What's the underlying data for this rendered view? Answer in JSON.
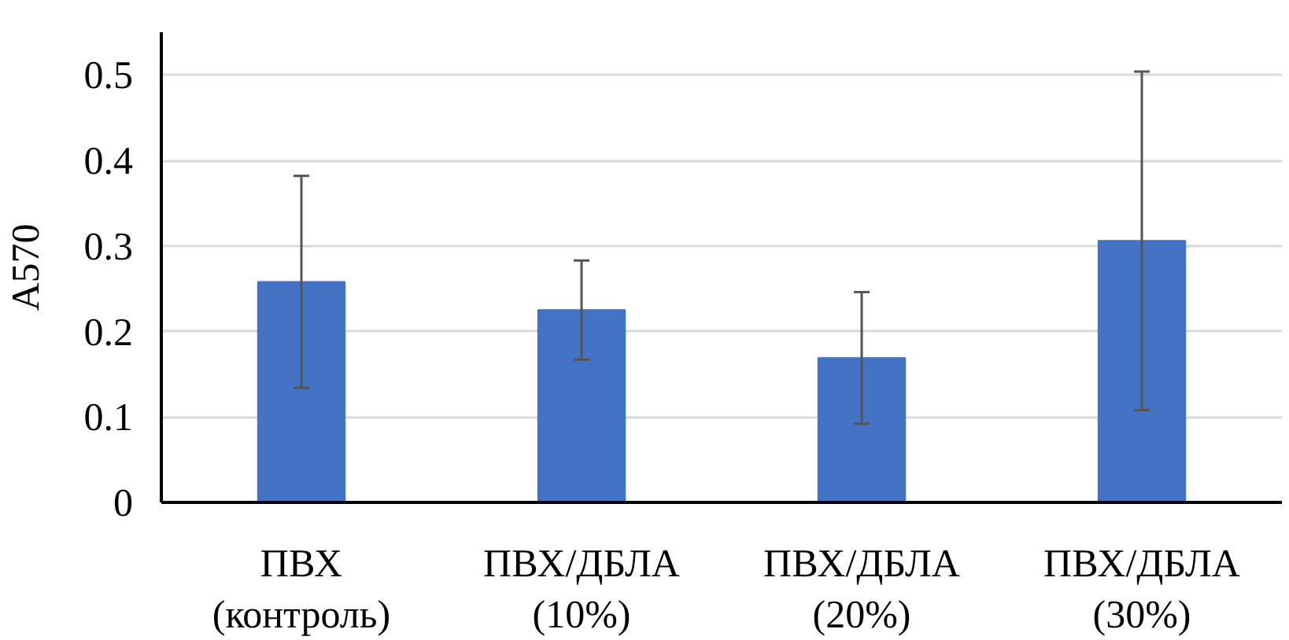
{
  "chart_data": {
    "type": "bar",
    "ylabel": "A570",
    "categories": [
      "ПВХ\n(контроль)",
      "ПВХ/ДБЛА\n(10%)",
      "ПВХ/ДБЛА\n(20%)",
      "ПВХ/ДБЛА\n(30%)"
    ],
    "values": [
      0.258,
      0.225,
      0.169,
      0.306
    ],
    "errors": [
      0.124,
      0.058,
      0.077,
      0.198
    ],
    "color": "#4472c4",
    "ylim": [
      0,
      0.55
    ],
    "yticks": [
      0,
      0.1,
      0.2,
      0.3,
      0.4,
      0.5
    ],
    "grid": "y"
  }
}
